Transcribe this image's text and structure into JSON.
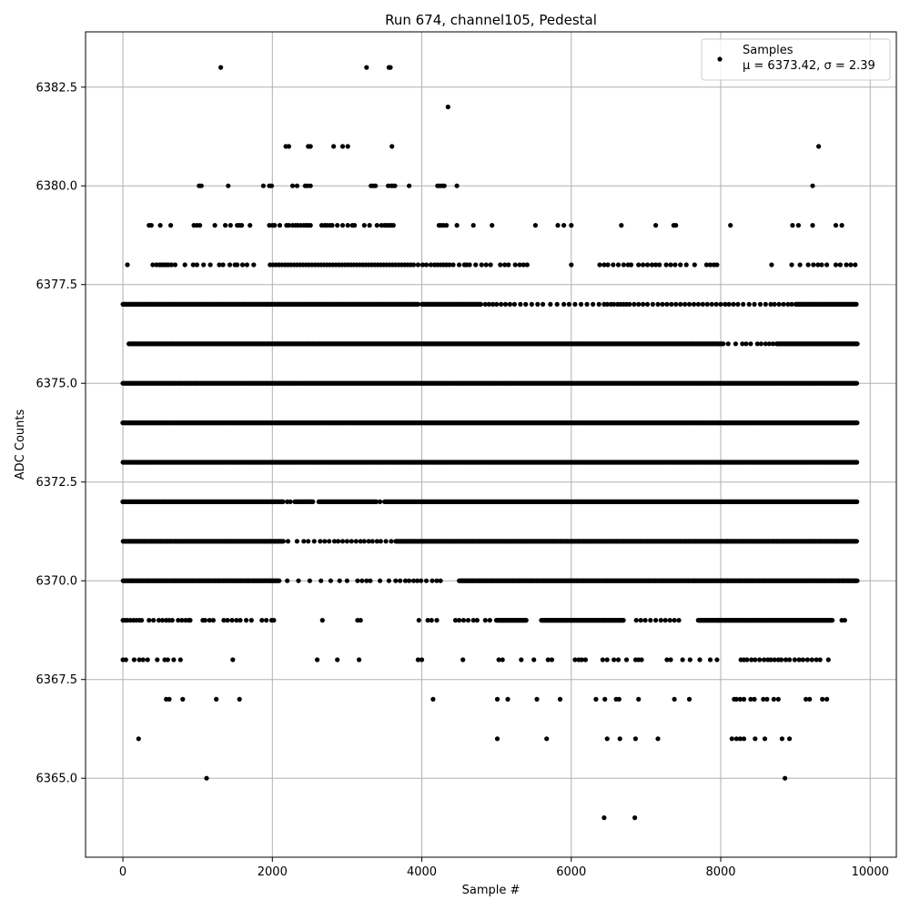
{
  "chart_data": {
    "type": "scatter",
    "title": "Run 674, channel105, Pedestal",
    "xlabel": "Sample #",
    "ylabel": "ADC Counts",
    "xlim": [
      -500,
      10350
    ],
    "ylim": [
      6363.0,
      6383.9
    ],
    "x_ticks": [
      0,
      2000,
      4000,
      6000,
      8000,
      10000
    ],
    "x_tick_labels": [
      "0",
      "2000",
      "4000",
      "6000",
      "8000",
      "10000"
    ],
    "y_ticks": [
      6365.0,
      6367.5,
      6370.0,
      6372.5,
      6375.0,
      6377.5,
      6380.0,
      6382.5
    ],
    "y_tick_labels": [
      "6365.0",
      "6367.5",
      "6370.0",
      "6372.5",
      "6375.0",
      "6377.5",
      "6380.0",
      "6382.5"
    ],
    "grid": true,
    "legend_position": "top-right",
    "marker_color": "#000000",
    "series": [
      {
        "name": "Samples",
        "stats_label": "μ = 6373.42, σ = 2.39",
        "levels": [
          {
            "y": 6383,
            "x": [
              1310,
              3260,
              3560,
              3580
            ]
          },
          {
            "y": 6382,
            "x": [
              4350
            ]
          },
          {
            "y": 6381,
            "x": [
              2180,
              2220,
              2480,
              2510,
              2820,
              2940,
              3010,
              3600,
              9310
            ]
          },
          {
            "y": 6380,
            "x": [
              1020,
              1050,
              1410,
              1880,
              1960,
              1990,
              2270,
              2330,
              2440,
              2470,
              2510,
              3320,
              3350,
              3380,
              3550,
              3590,
              3610,
              3640,
              3830,
              4210,
              4240,
              4270,
              4300,
              4470,
              9230
            ]
          },
          {
            "y": 6379,
            "x": [
              350,
              380,
              500,
              640,
              950,
              990,
              1030,
              1230,
              1370,
              1440,
              1530,
              1560,
              1590,
              1700,
              1960,
              2000,
              2030,
              2100,
              2190,
              2220,
              2270,
              2310,
              2340,
              2380,
              2420,
              2450,
              2480,
              2510,
              2660,
              2700,
              2730,
              2770,
              2800,
              2870,
              2940,
              3010,
              3070,
              3100,
              3230,
              3300,
              3400,
              3460,
              3500,
              3530,
              3560,
              3590,
              3620,
              4230,
              4260,
              4290,
              4330,
              4470,
              4690,
              4940,
              5520,
              5820,
              5900,
              6000,
              6670,
              7130,
              7370,
              7400,
              8130,
              8960,
              9040,
              9230,
              9540,
              9620
            ]
          },
          {
            "y": 6378,
            "x": [
              60,
              400,
              450,
              490,
              520,
              550,
              580,
              610,
              650,
              700,
              830,
              940,
              990,
              1080,
              1170,
              1290,
              1340,
              1430,
              1500,
              1530,
              1600,
              1660,
              1750,
              1970,
              2010,
              2050,
              2090,
              2130,
              2170,
              2210,
              2250,
              2290,
              2330,
              2370,
              2410,
              2450,
              2490,
              2530,
              2570,
              2610,
              2650,
              2690,
              2730,
              2770,
              2810,
              2850,
              2890,
              2930,
              2970,
              3010,
              3050,
              3090,
              3130,
              3170,
              3210,
              3250,
              3290,
              3330,
              3370,
              3410,
              3450,
              3490,
              3530,
              3570,
              3610,
              3650,
              3690,
              3730,
              3770,
              3810,
              3850,
              3890,
              3950,
              4010,
              4060,
              4120,
              4170,
              4210,
              4250,
              4290,
              4330,
              4370,
              4420,
              4500,
              4570,
              4600,
              4640,
              4720,
              4800,
              4860,
              4920,
              5050,
              5110,
              5160,
              5250,
              5310,
              5360,
              5410,
              6000,
              6380,
              6440,
              6490,
              6560,
              6630,
              6700,
              6760,
              6800,
              6900,
              6960,
              7020,
              7080,
              7130,
              7180,
              7270,
              7330,
              7390,
              7460,
              7540,
              7650,
              7810,
              7860,
              7910,
              7950,
              8680,
              8950,
              9060,
              9170,
              9240,
              9300,
              9350,
              9420,
              9540,
              9600,
              9680,
              9740,
              9800
            ]
          },
          {
            "y": 6377,
            "x_dense": [
              [
                0,
                3950
              ],
              [
                4000,
                4800
              ],
              [
                9000,
                9820
              ]
            ],
            "x_sparse": [
              4850,
              4900,
              4950,
              5000,
              5060,
              5120,
              5180,
              5240,
              5320,
              5390,
              5470,
              5550,
              5620,
              5720,
              5810,
              5900,
              5970,
              6050,
              6130,
              6210,
              6290,
              6370,
              6440,
              6480,
              6530,
              6570,
              6620,
              6660,
              6700,
              6740,
              6780,
              6840,
              6900,
              6960,
              7020,
              7090,
              7160,
              7220,
              7280,
              7340,
              7400,
              7460,
              7520,
              7580,
              7640,
              7700,
              7760,
              7820,
              7880,
              7940,
              8000,
              8060,
              8110,
              8170,
              8230,
              8300,
              8380,
              8450,
              8530,
              8600,
              8670,
              8720,
              8780,
              8840,
              8900,
              8950
            ]
          },
          {
            "y": 6376,
            "x_dense": [
              [
                80,
                8040
              ],
              [
                8750,
                9830
              ]
            ],
            "x_sparse": [
              8100,
              8200,
              8290,
              8340,
              8400,
              8490,
              8540,
              8600,
              8650,
              8700
            ]
          },
          {
            "y": 6375,
            "x_dense": [
              [
                0,
                9830
              ]
            ],
            "x_sparse": []
          },
          {
            "y": 6374,
            "x_dense": [
              [
                0,
                9830
              ]
            ],
            "x_sparse": []
          },
          {
            "y": 6373,
            "x_dense": [
              [
                0,
                9830
              ]
            ],
            "x_sparse": []
          },
          {
            "y": 6372,
            "x_dense": [
              [
                0,
                2150
              ],
              [
                2300,
                2550
              ],
              [
                2620,
                3400
              ],
              [
                3500,
                9830
              ]
            ],
            "x_sparse": [
              2200,
              2240,
              2420,
              3440
            ]
          },
          {
            "y": 6371,
            "x_dense": [
              [
                0,
                2150
              ],
              [
                3650,
                9830
              ]
            ],
            "x_sparse": [
              2210,
              2330,
              2420,
              2480,
              2560,
              2640,
              2700,
              2760,
              2830,
              2880,
              2940,
              3000,
              3060,
              3120,
              3180,
              3230,
              3290,
              3340,
              3400,
              3450,
              3520,
              3590
            ]
          },
          {
            "y": 6370,
            "x_dense": [
              [
                0,
                2100
              ],
              [
                4500,
                9830
              ]
            ],
            "x_sparse": [
              2200,
              2350,
              2500,
              2650,
              2780,
              2900,
              3000,
              3140,
              3200,
              3260,
              3310,
              3440,
              3560,
              3650,
              3710,
              3780,
              3830,
              3890,
              3940,
              3990,
              4060,
              4140,
              4200,
              4250
            ]
          },
          {
            "y": 6369,
            "x_dense": [
              [
                5000,
                5400
              ],
              [
                5600,
                6700
              ],
              [
                7700,
                9500
              ]
            ],
            "x_sparse": [
              0,
              30,
              60,
              100,
              140,
              180,
              220,
              250,
              350,
              410,
              480,
              530,
              580,
              620,
              660,
              740,
              790,
              840,
              880,
              900,
              1070,
              1100,
              1160,
              1210,
              1350,
              1400,
              1460,
              1520,
              1570,
              1650,
              1720,
              1860,
              1920,
              1990,
              2020,
              2670,
              3140,
              3180,
              3960,
              4080,
              4130,
              4200,
              4450,
              4500,
              4560,
              4620,
              4690,
              4740,
              4850,
              4910,
              6870,
              6930,
              6990,
              7060,
              7130,
              7200,
              7260,
              7320,
              7380,
              7440,
              9620,
              9660
            ]
          },
          {
            "y": 6368,
            "x": [
              0,
              40,
              150,
              220,
              270,
              330,
              460,
              560,
              600,
              680,
              770,
              1470,
              2600,
              2870,
              3160,
              3950,
              4000,
              4550,
              5030,
              5080,
              5330,
              5500,
              5690,
              5740,
              6050,
              6100,
              6140,
              6190,
              6420,
              6480,
              6570,
              6630,
              6740,
              6860,
              6900,
              6940,
              7280,
              7330,
              7490,
              7590,
              7720,
              7860,
              7950,
              8270,
              8310,
              8350,
              8410,
              8460,
              8520,
              8580,
              8630,
              8670,
              8720,
              8770,
              8810,
              8870,
              8920,
              8990,
              9050,
              9100,
              9160,
              9220,
              9280,
              9330,
              9440
            ]
          },
          {
            "y": 6367,
            "x": [
              580,
              620,
              800,
              1250,
              1560,
              4150,
              5010,
              5150,
              5540,
              5850,
              6330,
              6450,
              6600,
              6640,
              6900,
              7380,
              7580,
              8180,
              8210,
              8260,
              8310,
              8400,
              8450,
              8570,
              8620,
              8710,
              8770,
              9140,
              9190,
              9360,
              9420
            ]
          },
          {
            "y": 6366,
            "x": [
              210,
              5010,
              5670,
              6480,
              6650,
              6860,
              7160,
              8150,
              8210,
              8260,
              8310,
              8460,
              8590,
              8820,
              8920
            ]
          },
          {
            "y": 6365,
            "x": [
              1120,
              8860
            ]
          },
          {
            "y": 6364,
            "x": [
              6440,
              6850
            ]
          }
        ]
      }
    ]
  }
}
